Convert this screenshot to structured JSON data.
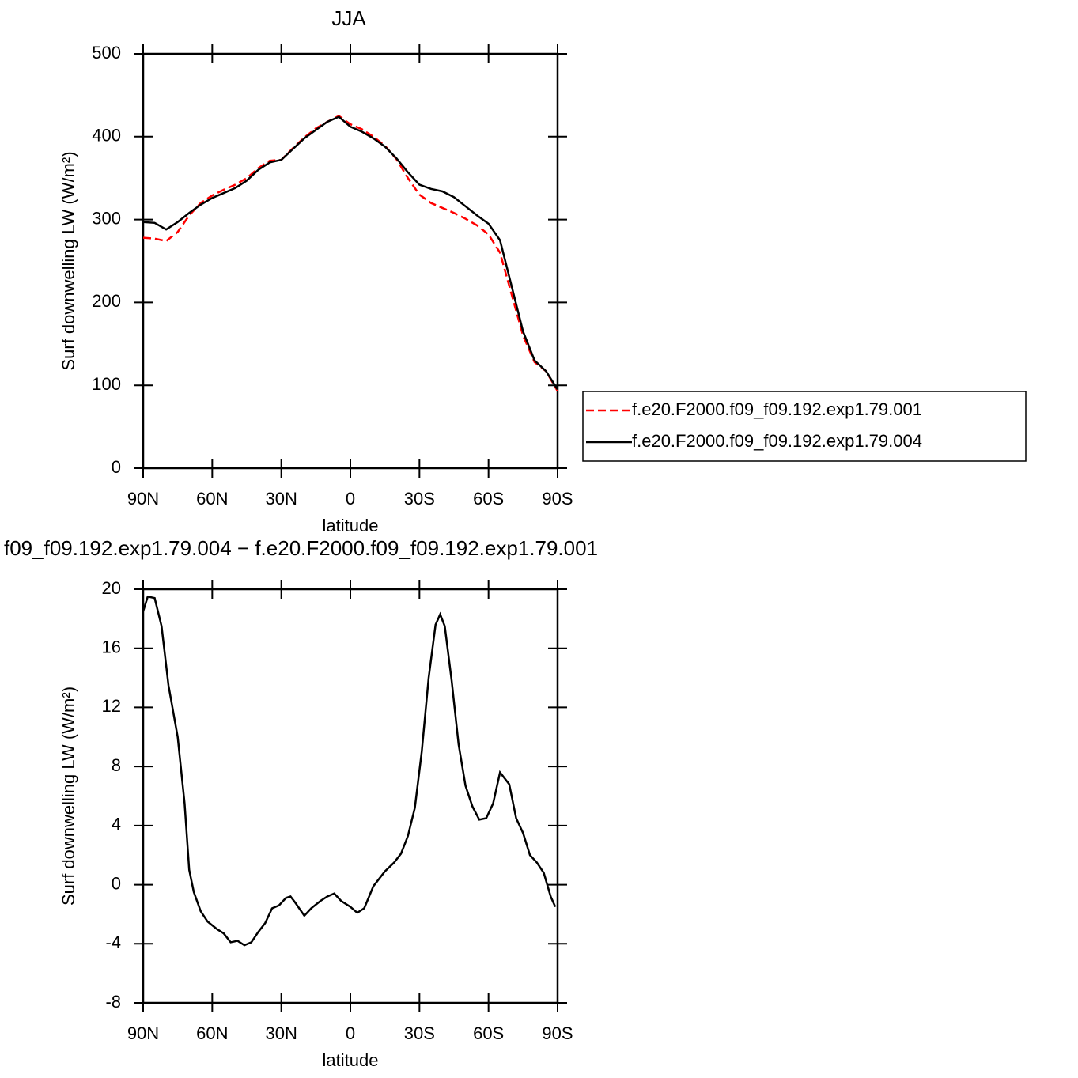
{
  "chart_data": [
    {
      "type": "line",
      "title": "JJA",
      "xlabel": "latitude",
      "ylabel": "Surf downwelling LW (W/m²)",
      "x": [
        90,
        85,
        80,
        75,
        70,
        65,
        60,
        55,
        50,
        45,
        40,
        35,
        30,
        25,
        20,
        15,
        10,
        5,
        0,
        -5,
        -10,
        -15,
        -20,
        -25,
        -30,
        -35,
        -40,
        -45,
        -50,
        -55,
        -60,
        -65,
        -70,
        -75,
        -80,
        -85,
        -90
      ],
      "xlim": [
        90,
        -90
      ],
      "xticks": [
        {
          "value": 90,
          "label": "90N"
        },
        {
          "value": 60,
          "label": "60N"
        },
        {
          "value": 30,
          "label": "30N"
        },
        0,
        {
          "value": -30,
          "label": "30S"
        },
        {
          "value": -60,
          "label": "60S"
        },
        {
          "value": -90,
          "label": "90S"
        }
      ],
      "ylim": [
        0,
        500
      ],
      "yticks": [
        0,
        100,
        200,
        300,
        400,
        500
      ],
      "legend": "right",
      "series": [
        {
          "name": "f.e20.F2000.f09_f09.192.exp1.79.001",
          "color": "#ff0000",
          "line_style": "dashed",
          "values": [
            278,
            277,
            274,
            285,
            305,
            320,
            329,
            336,
            342,
            350,
            362,
            371,
            372,
            386,
            399,
            410,
            418,
            425,
            415,
            409,
            400,
            389,
            373,
            350,
            330,
            320,
            314,
            308,
            301,
            293,
            282,
            260,
            210,
            160,
            128,
            117,
            93
          ]
        },
        {
          "name": "f.e20.F2000.f09_f09.192.exp1.79.004",
          "color": "#000000",
          "line_style": "solid",
          "values": [
            297,
            296,
            288,
            297,
            308,
            318,
            326,
            332,
            338,
            347,
            360,
            369,
            372,
            385,
            398,
            408,
            418,
            424,
            412,
            406,
            398,
            388,
            374,
            357,
            342,
            337,
            334,
            327,
            316,
            305,
            295,
            275,
            220,
            165,
            130,
            117,
            95
          ]
        }
      ]
    },
    {
      "type": "line",
      "title": "f09_f09.192.exp1.79.004 − f.e20.F2000.f09_f09.192.exp1.79.001",
      "xlabel": "latitude",
      "ylabel": "Surf downwelling LW (W/m²)",
      "x": [
        90,
        88,
        85,
        82,
        79,
        75,
        72,
        70,
        68,
        65,
        62,
        58,
        55,
        52,
        49,
        46,
        43,
        40,
        37,
        34,
        31,
        28,
        26,
        24,
        20,
        17,
        13,
        10,
        7,
        4,
        0,
        -3,
        -6,
        -10,
        -15,
        -19,
        -22,
        -25,
        -28,
        -31,
        -34,
        -37,
        -39,
        -41,
        -44,
        -47,
        -50,
        -53,
        -56,
        -59,
        -62,
        -65,
        -67,
        -69,
        -72,
        -75,
        -78,
        -81,
        -84,
        -87,
        -89
      ],
      "xlim": [
        90,
        -90
      ],
      "xticks": [
        {
          "value": 90,
          "label": "90N"
        },
        {
          "value": 60,
          "label": "60N"
        },
        {
          "value": 30,
          "label": "30N"
        },
        0,
        {
          "value": -30,
          "label": "30S"
        },
        {
          "value": -60,
          "label": "60S"
        },
        {
          "value": -90,
          "label": "90S"
        }
      ],
      "ylim": [
        -8,
        20
      ],
      "yticks": [
        -8,
        -4,
        0,
        4,
        8,
        12,
        16,
        20
      ],
      "series": [
        {
          "color": "#000000",
          "line_style": "solid",
          "values": [
            18.5,
            19.5,
            19.4,
            17.5,
            13.5,
            10,
            5.5,
            1,
            -0.5,
            -1.8,
            -2.5,
            -3,
            -3.3,
            -3.9,
            -3.8,
            -4.1,
            -3.9,
            -3.2,
            -2.6,
            -1.6,
            -1.4,
            -0.9,
            -0.8,
            -1.2,
            -2.1,
            -1.6,
            -1.1,
            -0.8,
            -0.6,
            -1.1,
            -1.5,
            -1.9,
            -1.6,
            -0.1,
            0.9,
            1.5,
            2.1,
            3.3,
            5.2,
            9,
            14,
            17.6,
            18.3,
            17.5,
            13.8,
            9.5,
            6.7,
            5.3,
            4.4,
            4.5,
            5.5,
            7.6,
            7.2,
            6.8,
            4.5,
            3.5,
            2,
            1.5,
            0.8,
            -0.8,
            -1.5
          ]
        }
      ]
    }
  ]
}
